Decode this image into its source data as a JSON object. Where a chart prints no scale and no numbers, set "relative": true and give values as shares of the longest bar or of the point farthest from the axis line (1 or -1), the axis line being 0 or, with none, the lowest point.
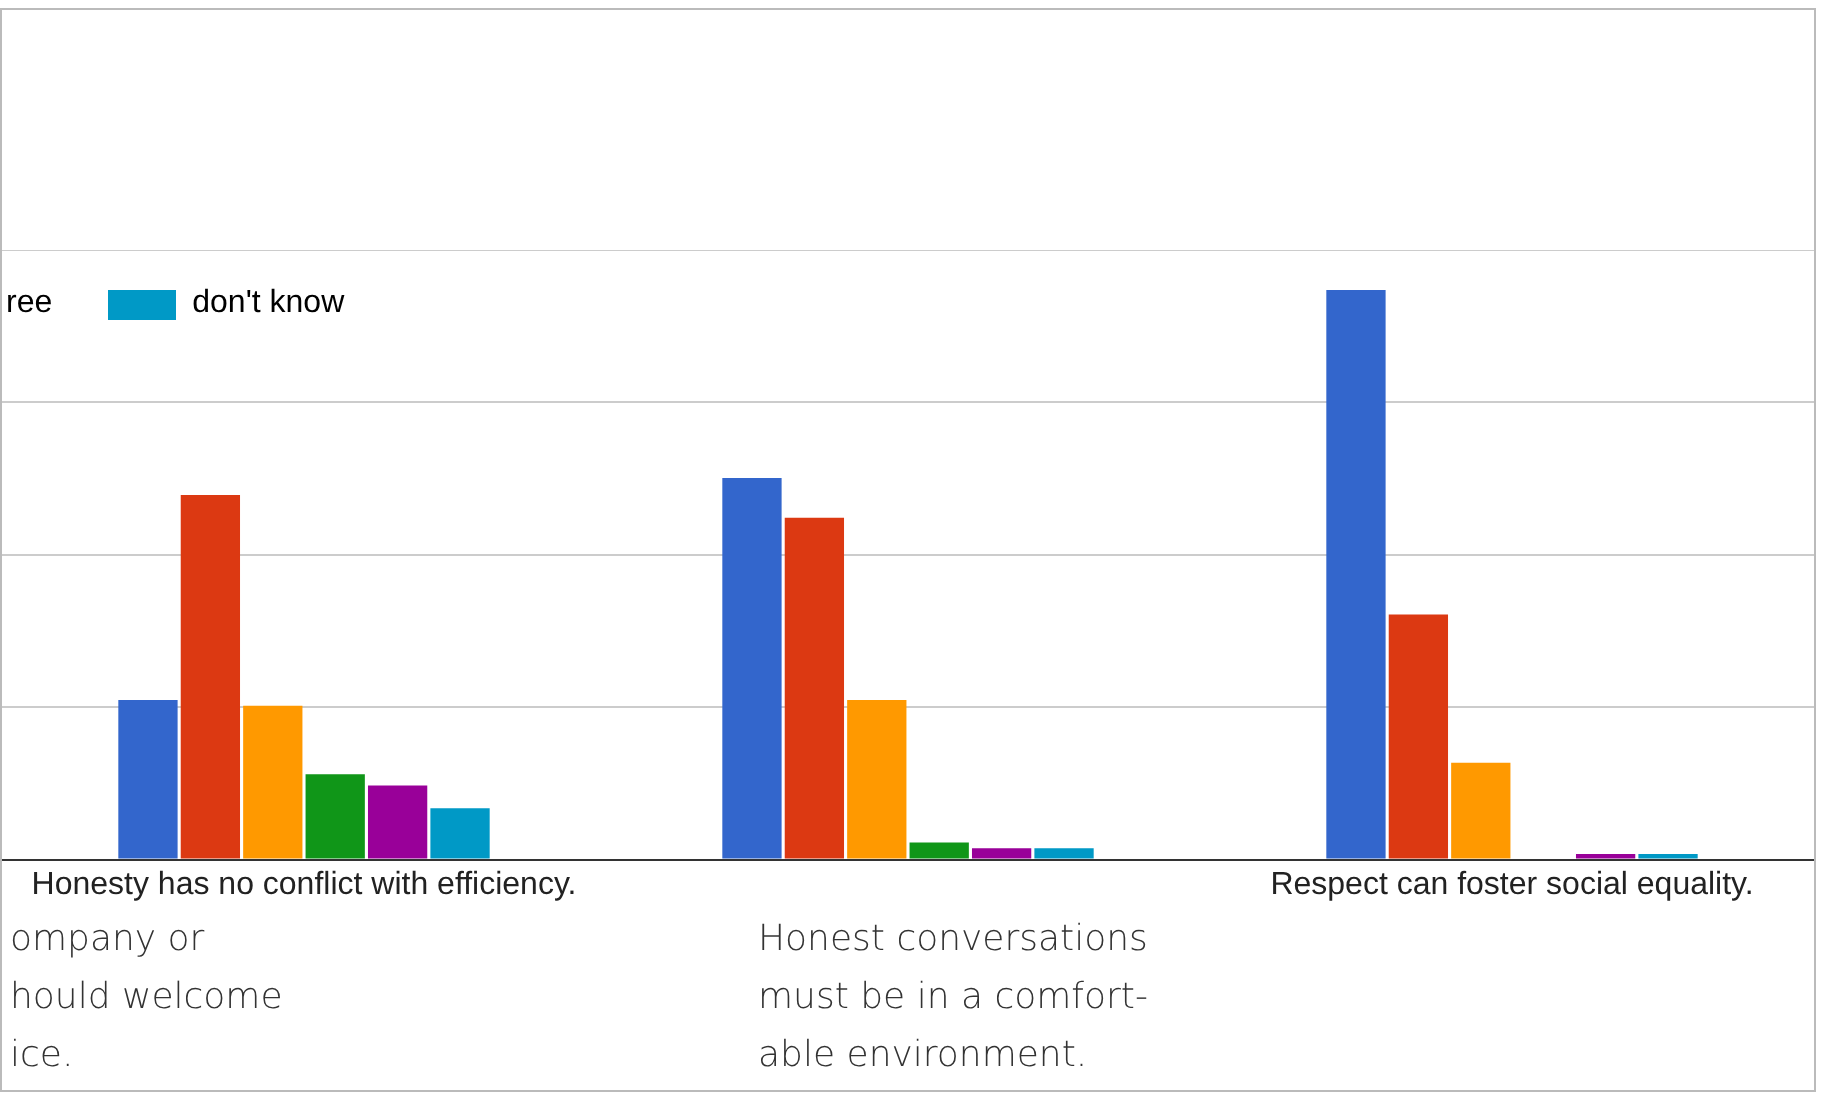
{
  "chart_data": {
    "type": "bar",
    "relative": true,
    "grid": "y",
    "legend": "top left",
    "categories": [
      "Honesty has no conflict with efficiency.",
      null,
      "Respect can foster social equality."
    ],
    "series": [
      {
        "color": "#3366cc",
        "values": [
          0.28,
          0.67,
          1
        ]
      },
      {
        "color": "#dc3912",
        "values": [
          0.64,
          0.6,
          0.43
        ]
      },
      {
        "color": "#ff9900",
        "values": [
          0.27,
          0.28,
          0.17
        ]
      },
      {
        "color": "#109618",
        "values": [
          0.15,
          0.03,
          0
        ]
      },
      {
        "color": "#990099",
        "values": [
          0.13,
          0.02,
          0.01
        ]
      },
      {
        "name": "don't know",
        "color": "#0099c6",
        "values": [
          0.09,
          0.02,
          0.01
        ]
      }
    ],
    "annotations": [
      "ree",
      "ompany or\nhould welcome\nice.",
      "Honest conversations\nmust be in a comfort-\nable environment."
    ]
  }
}
